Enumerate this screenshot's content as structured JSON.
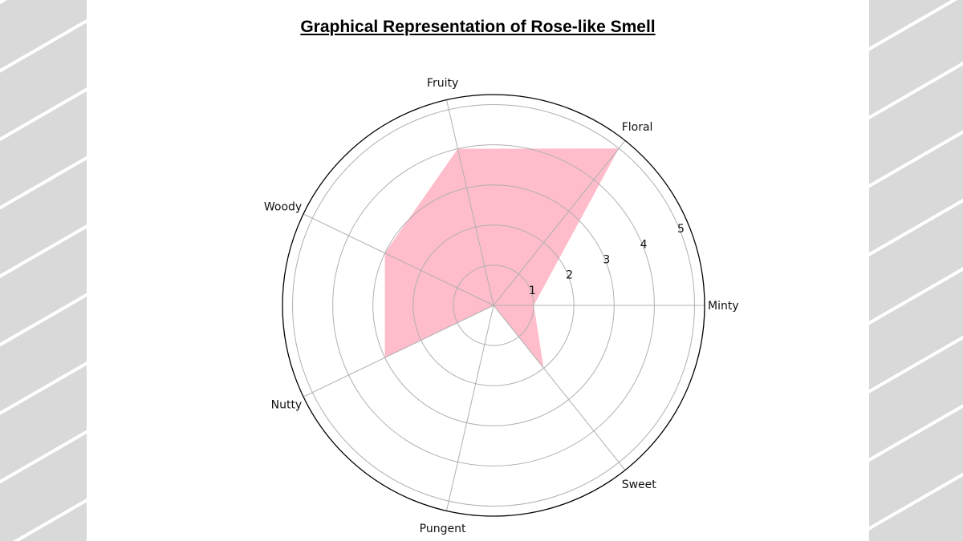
{
  "chart_data": {
    "type": "radar",
    "title": "Graphical Representation of Rose-like Smell",
    "categories": [
      "Minty",
      "Floral",
      "Fruity",
      "Woody",
      "Nutty",
      "Pungent",
      "Sweet"
    ],
    "values": [
      1,
      5,
      4,
      3,
      3,
      0,
      2
    ],
    "radial_ticks": [
      "1",
      "2",
      "3",
      "4",
      "5"
    ],
    "rlim": [
      0,
      5.25
    ],
    "grid": true,
    "fill_color": "#ffbccb"
  }
}
